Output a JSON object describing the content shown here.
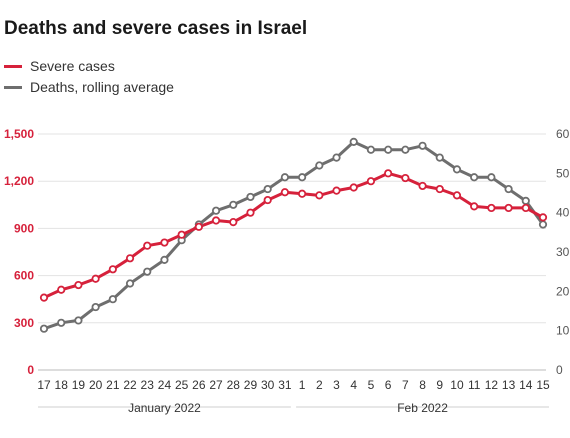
{
  "chart_data": {
    "type": "line",
    "title": "Deaths and severe cases in Israel",
    "x": [
      "17",
      "18",
      "19",
      "20",
      "21",
      "22",
      "23",
      "24",
      "25",
      "26",
      "27",
      "28",
      "29",
      "30",
      "31",
      "1",
      "2",
      "3",
      "4",
      "5",
      "6",
      "7",
      "8",
      "9",
      "10",
      "11",
      "12",
      "13",
      "14",
      "15"
    ],
    "x_groups": [
      {
        "label": "January 2022",
        "from": "17",
        "to": "31"
      },
      {
        "label": "Feb 2022",
        "from": "1",
        "to": "15"
      }
    ],
    "series": [
      {
        "name": "Severe cases",
        "axis": "left",
        "color": "#d6213b",
        "values": [
          460,
          510,
          540,
          580,
          640,
          710,
          790,
          810,
          860,
          910,
          950,
          940,
          1000,
          1080,
          1130,
          1120,
          1110,
          1140,
          1160,
          1200,
          1250,
          1220,
          1170,
          1150,
          1110,
          1040,
          1030,
          1030,
          1030,
          970
        ]
      },
      {
        "name": "Deaths, rolling average",
        "axis": "right",
        "color": "#6e6e6e",
        "values": [
          10.5,
          12,
          12.6,
          16,
          18,
          22,
          25,
          28,
          33,
          37,
          40.5,
          42,
          44,
          46,
          49,
          49,
          52,
          54,
          58,
          56,
          56,
          56,
          57,
          54,
          51,
          49,
          49,
          46,
          43,
          37
        ]
      }
    ],
    "y_left": {
      "ticks": [
        "0",
        "300",
        "600",
        "900",
        "1,200",
        "1,500"
      ],
      "ylim": [
        0,
        1500
      ],
      "color": "#d6213b"
    },
    "y_right": {
      "ticks": [
        "0",
        "10",
        "20",
        "30",
        "40",
        "50",
        "60"
      ],
      "ylim": [
        0,
        60
      ],
      "color": "#555555"
    },
    "grid": true,
    "legend_placement": "top-left"
  }
}
